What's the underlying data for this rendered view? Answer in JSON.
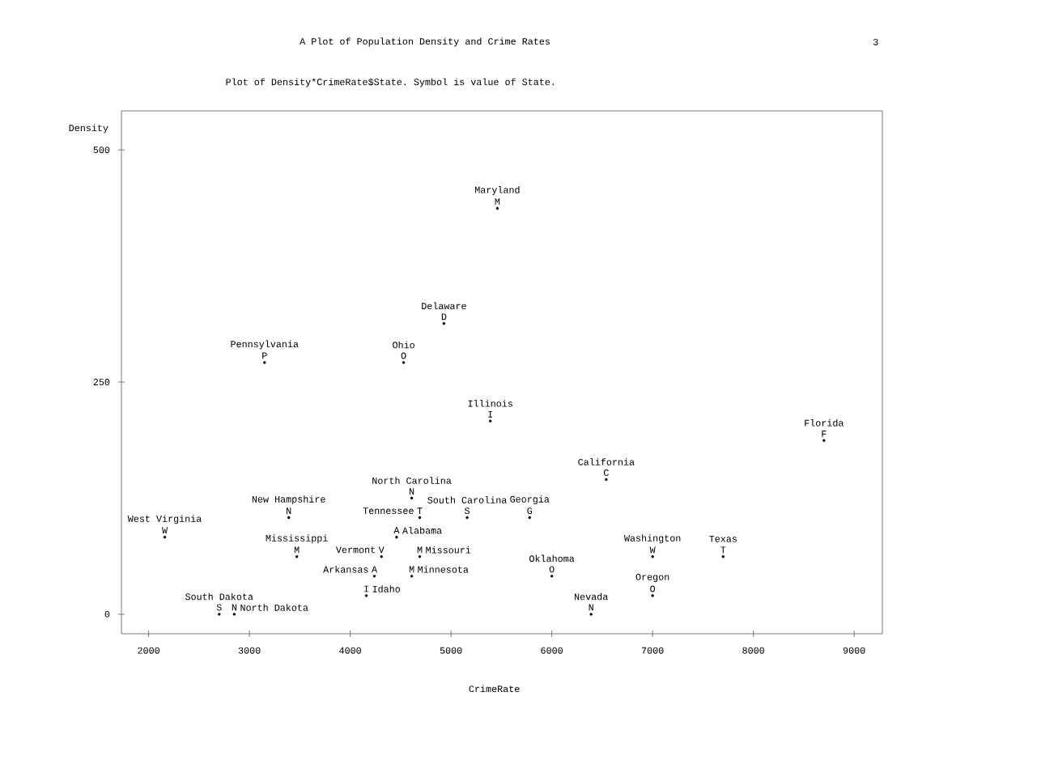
{
  "chart_data": {
    "type": "scatter",
    "title": "A Plot of Population Density and Crime Rates",
    "subtitle": "Plot of Density*CrimeRate$State.  Symbol is value of State.",
    "xlabel": "CrimeRate",
    "ylabel": "Density",
    "xlim": [
      1730,
      9280
    ],
    "ylim": [
      -21,
      542
    ],
    "xticks": [
      2000,
      3000,
      4000,
      5000,
      6000,
      7000,
      8000,
      9000
    ],
    "yticks": [
      0,
      250,
      500
    ],
    "marker": "circle",
    "series": [
      {
        "color": "#000000",
        "x": [
          5460,
          4930,
          3150,
          4530,
          5390,
          8700,
          6540,
          4610,
          5160,
          3390,
          5780,
          4690,
          4460,
          2160,
          7000,
          7700,
          3470,
          4310,
          4690,
          6000,
          4240,
          4610,
          7000,
          4160,
          6390,
          2700,
          2850
        ],
        "values": [
          437,
          313,
          271,
          271,
          208,
          187,
          145,
          125,
          104,
          104,
          104,
          104,
          83,
          83,
          62,
          62,
          62,
          62,
          62,
          41,
          41,
          41,
          20,
          20,
          0,
          0,
          0
        ],
        "value_labels": [
          "M",
          "D",
          "P",
          "O",
          "I",
          "F",
          "C",
          "N",
          "S",
          "N",
          "G",
          "T",
          "A",
          "W",
          "W",
          "T",
          "M",
          "V",
          "M",
          "O",
          "A",
          "M",
          "O",
          "I",
          "N",
          "S",
          "N"
        ]
      }
    ],
    "annotations": [
      "3",
      {
        "text": "Maryland",
        "x": 5460,
        "y": 437
      },
      {
        "text": "Delaware",
        "x": 4930,
        "y": 313
      },
      {
        "text": "Pennsylvania",
        "x": 3150,
        "y": 271
      },
      {
        "text": "Ohio",
        "x": 4530,
        "y": 271
      },
      {
        "text": "Illinois",
        "x": 5390,
        "y": 208
      },
      {
        "text": "Florida",
        "x": 8700,
        "y": 187
      },
      {
        "text": "California",
        "x": 6540,
        "y": 145
      },
      {
        "text": "North Carolina",
        "x": 4610,
        "y": 125
      },
      {
        "text": "South Carolina",
        "x": 5160,
        "y": 104
      },
      {
        "text": "New Hampshire",
        "x": 3390,
        "y": 104
      },
      {
        "text": "Georgia",
        "x": 5780,
        "y": 104
      },
      {
        "text": "Tennessee",
        "x": 4690,
        "y": 104
      },
      {
        "text": "Alabama",
        "x": 4460,
        "y": 83
      },
      {
        "text": "West Virginia",
        "x": 2160,
        "y": 83
      },
      {
        "text": "Washington",
        "x": 7000,
        "y": 62
      },
      {
        "text": "Texas",
        "x": 7700,
        "y": 62
      },
      {
        "text": "Mississippi",
        "x": 3470,
        "y": 62
      },
      {
        "text": "Vermont",
        "x": 4310,
        "y": 62
      },
      {
        "text": "Missouri",
        "x": 4690,
        "y": 62
      },
      {
        "text": "Oklahoma",
        "x": 6000,
        "y": 41
      },
      {
        "text": "Arkansas",
        "x": 4240,
        "y": 41
      },
      {
        "text": "Minnesota",
        "x": 4610,
        "y": 41
      },
      {
        "text": "Oregon",
        "x": 7000,
        "y": 20
      },
      {
        "text": "Idaho",
        "x": 4160,
        "y": 20
      },
      {
        "text": "Nevada",
        "x": 6390,
        "y": 0
      },
      {
        "text": "South Dakota",
        "x": 2700,
        "y": 0
      },
      {
        "text": "North Dakota",
        "x": 2850,
        "y": 0
      }
    ]
  }
}
